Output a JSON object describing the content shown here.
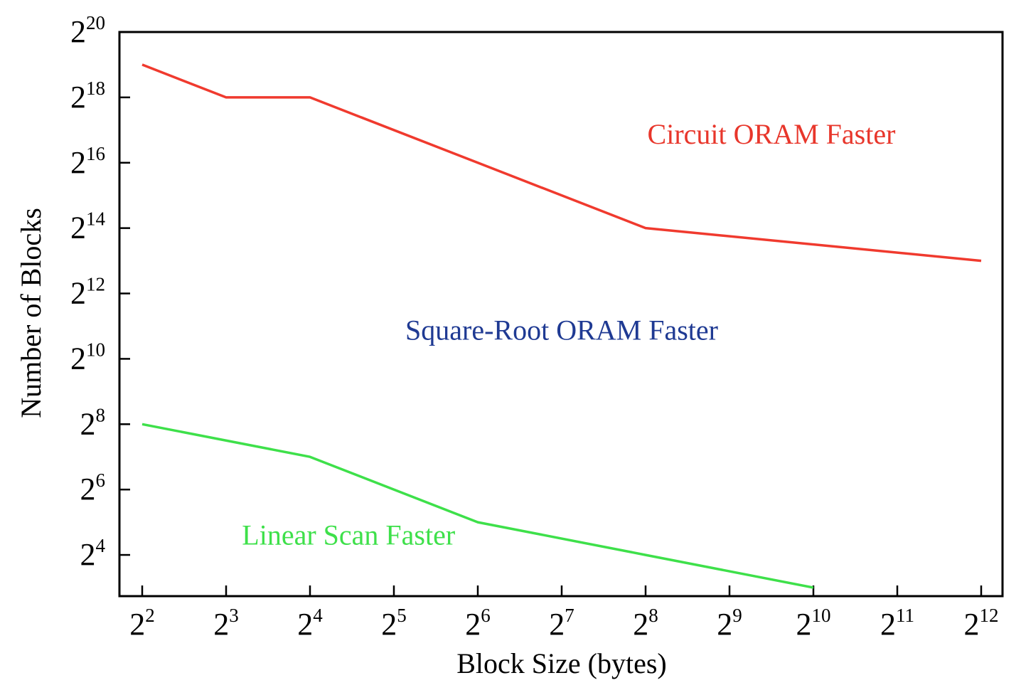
{
  "chart_data": {
    "type": "line",
    "xscale": "log2",
    "yscale": "log2",
    "xlabel": "Block Size (bytes)",
    "ylabel": "Number of Blocks",
    "xlim": [
      4,
      4096
    ],
    "ylim": [
      8,
      1048576
    ],
    "x_ticks": [
      {
        "base": "2",
        "exp": "2",
        "value": 4
      },
      {
        "base": "2",
        "exp": "3",
        "value": 8
      },
      {
        "base": "2",
        "exp": "4",
        "value": 16
      },
      {
        "base": "2",
        "exp": "5",
        "value": 32
      },
      {
        "base": "2",
        "exp": "6",
        "value": 64
      },
      {
        "base": "2",
        "exp": "7",
        "value": 128
      },
      {
        "base": "2",
        "exp": "8",
        "value": 256
      },
      {
        "base": "2",
        "exp": "9",
        "value": 512
      },
      {
        "base": "2",
        "exp": "10",
        "value": 1024
      },
      {
        "base": "2",
        "exp": "11",
        "value": 2048
      },
      {
        "base": "2",
        "exp": "12",
        "value": 4096
      }
    ],
    "y_ticks": [
      {
        "base": "2",
        "exp": "4",
        "value": 16
      },
      {
        "base": "2",
        "exp": "6",
        "value": 64
      },
      {
        "base": "2",
        "exp": "8",
        "value": 256
      },
      {
        "base": "2",
        "exp": "10",
        "value": 1024
      },
      {
        "base": "2",
        "exp": "12",
        "value": 4096
      },
      {
        "base": "2",
        "exp": "14",
        "value": 16384
      },
      {
        "base": "2",
        "exp": "16",
        "value": 65536
      },
      {
        "base": "2",
        "exp": "18",
        "value": 262144
      },
      {
        "base": "2",
        "exp": "20",
        "value": 1048576
      }
    ],
    "series": [
      {
        "color": "#f03a2e",
        "x": [
          4,
          8,
          16,
          64,
          256,
          4096
        ],
        "y": [
          524288,
          262144,
          262144,
          65536,
          16384,
          8192
        ]
      },
      {
        "color": "#3ee04a",
        "x": [
          4,
          16,
          64,
          256,
          1024
        ],
        "y": [
          256,
          128,
          32,
          16,
          8
        ]
      }
    ],
    "annotations": [
      {
        "text": "Circuit ORAM Faster",
        "color": "#e8362b",
        "x": 724,
        "y": 98304
      },
      {
        "text": "Square-Root ORAM Faster",
        "color": "#1f3a93",
        "x": 128,
        "y": 1536
      },
      {
        "text": "Linear Scan Faster",
        "color": "#3ee04a",
        "x": 22,
        "y": 20
      }
    ],
    "grid": false,
    "legend": "none"
  }
}
